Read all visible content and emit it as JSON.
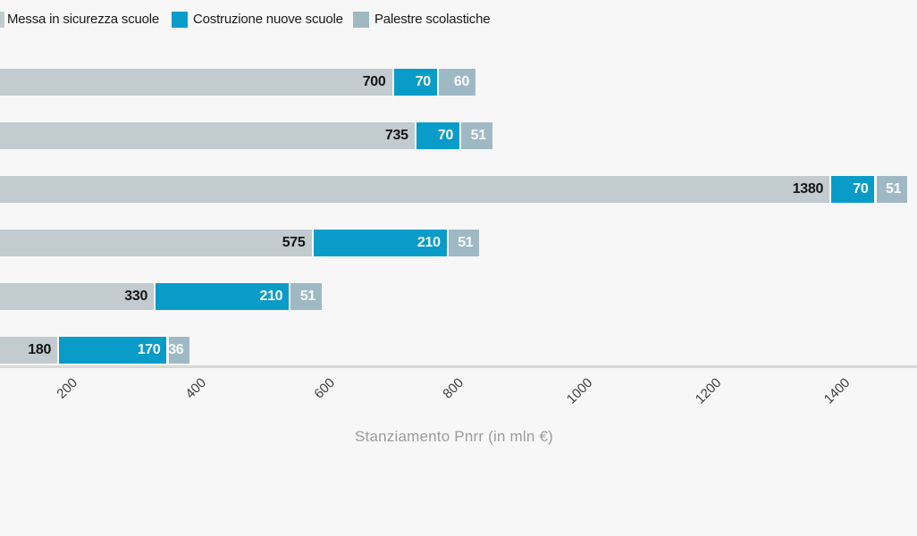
{
  "legend": {
    "items": [
      {
        "label": "Messa in sicurezza scuole",
        "color": "#c2cbcf"
      },
      {
        "label": "Costruzione nuove scuole",
        "color": "#0a9cc8"
      },
      {
        "label": "Palestre scolastiche",
        "color": "#9fb9c4"
      }
    ]
  },
  "chart_data": {
    "type": "bar",
    "orientation": "horizontal",
    "stacked": true,
    "title": "",
    "xlabel": "Stanziamento Pnrr (in mln €)",
    "ylabel": "",
    "x_ticks": [
      200,
      400,
      600,
      800,
      1000,
      1200,
      1400
    ],
    "x_tick_rotation_deg": -45,
    "x_visible_range": [
      90,
      1500
    ],
    "grid": "off",
    "legend_position": "top-left",
    "value_labels_shown": true,
    "series": [
      {
        "name": "Messa in sicurezza scuole",
        "color": "#c2cbcf",
        "label_color": "#141414",
        "values": [
          700,
          735,
          1380,
          575,
          330,
          180
        ]
      },
      {
        "name": "Costruzione nuove scuole",
        "color": "#0a9cc8",
        "label_color": "#fafafa",
        "values": [
          70,
          70,
          70,
          210,
          210,
          170
        ]
      },
      {
        "name": "Palestre scolastiche",
        "color": "#9fb9c4",
        "label_color": "#fafafa",
        "values": [
          60,
          51,
          51,
          51,
          51,
          36
        ]
      }
    ],
    "bar_totals": [
      830,
      856,
      1501,
      836,
      591,
      386
    ]
  },
  "colors": {
    "background": "#f7f7f7",
    "axis_line": "#d8d8d8",
    "tick_text": "#3d3d3d",
    "axis_title_text": "#9c9c9c",
    "legend_text": "#1a1a1a"
  }
}
